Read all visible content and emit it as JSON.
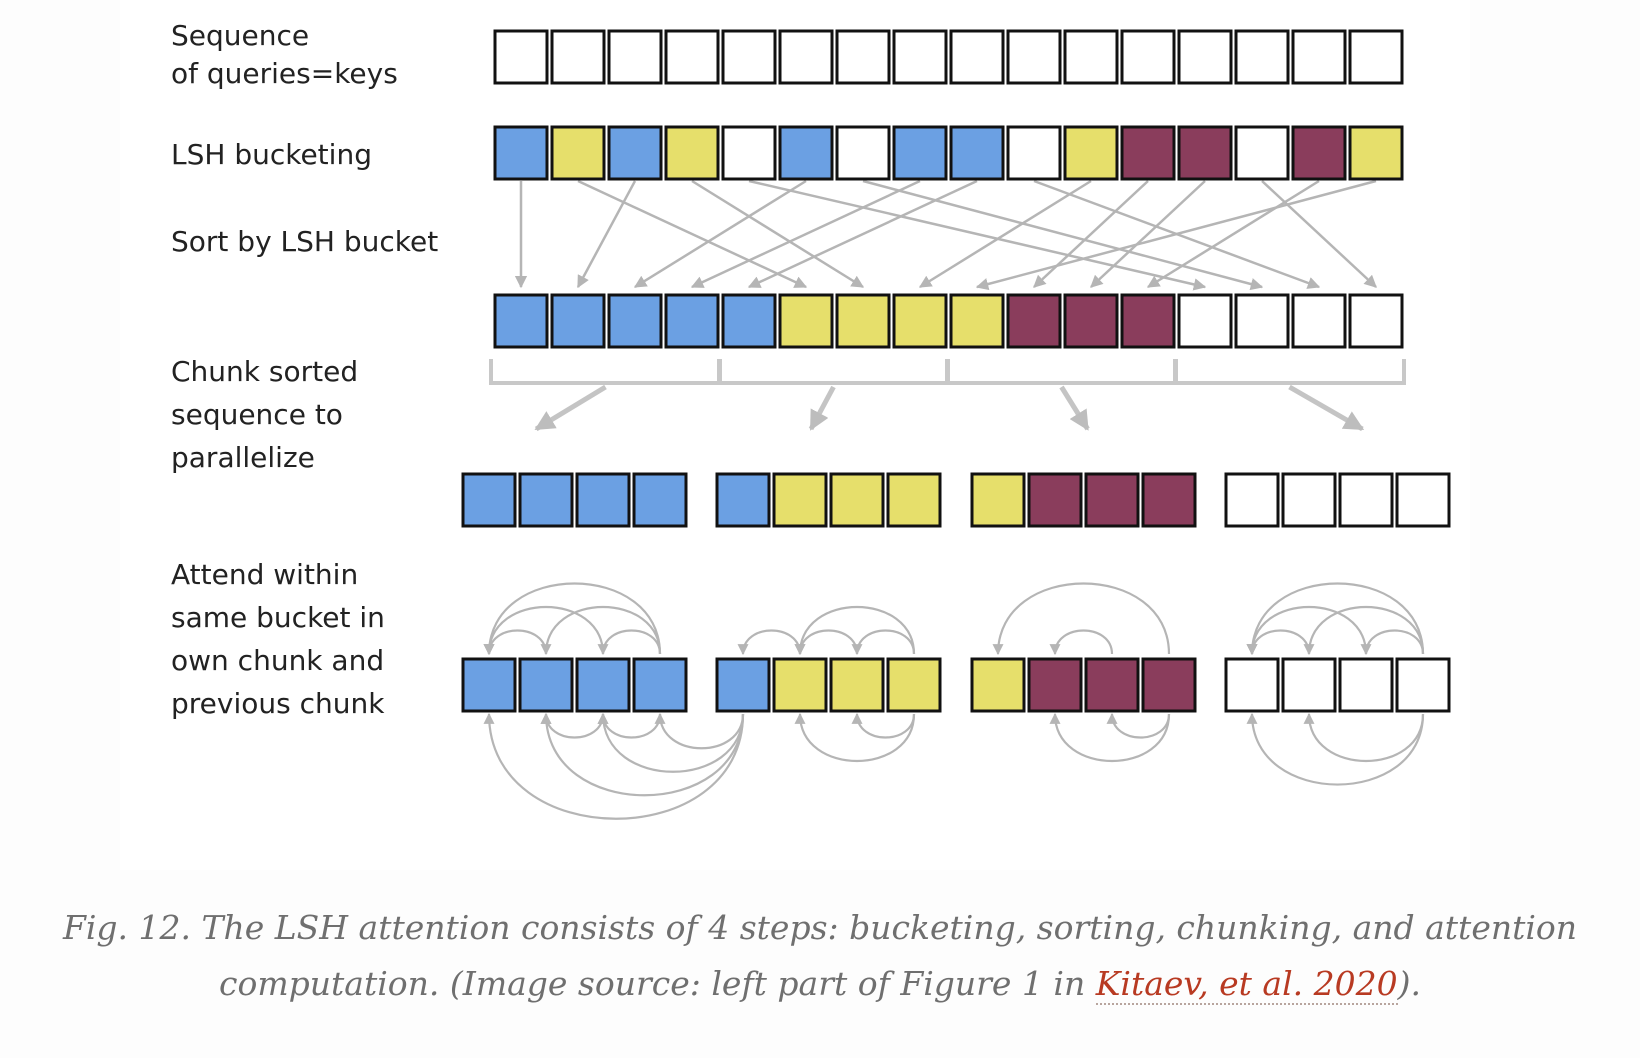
{
  "colors": {
    "blue": "#6ba0e3",
    "yellow": "#e6df6b",
    "purple": "#8a3d5c",
    "white": "#ffffff",
    "cell_border": "#111111",
    "arrow": "#b5b5b5"
  },
  "labels": {
    "sequence": "Sequence\nof queries=keys",
    "bucketing": "LSH bucketing",
    "sort": "Sort by LSH bucket",
    "chunk": "Chunk sorted\nsequence to\nparallelize",
    "attend": "Attend within\nsame bucket in\nown chunk and\nprevious chunk"
  },
  "diagram": {
    "bucketed": [
      "blue",
      "yellow",
      "blue",
      "yellow",
      "white",
      "blue",
      "white",
      "blue",
      "blue",
      "white",
      "yellow",
      "purple",
      "purple",
      "white",
      "purple",
      "yellow"
    ],
    "sorted": [
      "blue",
      "blue",
      "blue",
      "blue",
      "blue",
      "yellow",
      "yellow",
      "yellow",
      "yellow",
      "purple",
      "purple",
      "purple",
      "white",
      "white",
      "white",
      "white"
    ],
    "sort_map": [
      0,
      5,
      1,
      6,
      12,
      2,
      13,
      3,
      4,
      14,
      7,
      9,
      10,
      15,
      11,
      8
    ],
    "chunks": [
      [
        "blue",
        "blue",
        "blue",
        "blue"
      ],
      [
        "blue",
        "yellow",
        "yellow",
        "yellow"
      ],
      [
        "yellow",
        "purple",
        "purple",
        "purple"
      ],
      [
        "white",
        "white",
        "white",
        "white"
      ]
    ]
  },
  "caption": {
    "text": "Fig. 12. The LSH attention consists of 4 steps: bucketing, sorting, chunking, and attention computation. (Image source: left part of Figure 1 in ",
    "link_text": "Kitaev, et al. 2020",
    "text_end": ")."
  }
}
